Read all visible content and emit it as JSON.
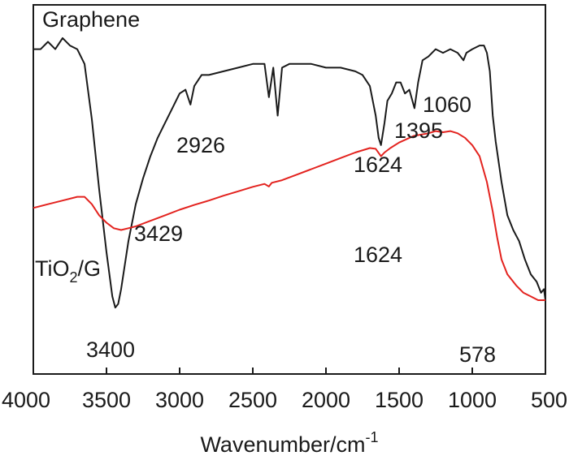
{
  "chart_data": {
    "type": "line",
    "xlabel": "Wavenumber/cm",
    "xlabel_sup": "-1",
    "xlim": [
      4000,
      500
    ],
    "x_reversed": true,
    "xticks": [
      4000,
      3500,
      3000,
      2500,
      2000,
      1500,
      1000,
      500
    ],
    "yticks_shown": false,
    "grid": false,
    "series": [
      {
        "name": "Graphene",
        "color": "#1a1a1a",
        "points": [
          [
            4000,
            0.88
          ],
          [
            3950,
            0.88
          ],
          [
            3900,
            0.9
          ],
          [
            3850,
            0.88
          ],
          [
            3800,
            0.91
          ],
          [
            3750,
            0.89
          ],
          [
            3700,
            0.88
          ],
          [
            3650,
            0.84
          ],
          [
            3600,
            0.69
          ],
          [
            3550,
            0.5
          ],
          [
            3500,
            0.33
          ],
          [
            3460,
            0.21
          ],
          [
            3440,
            0.18
          ],
          [
            3420,
            0.19
          ],
          [
            3400,
            0.23
          ],
          [
            3350,
            0.36
          ],
          [
            3300,
            0.46
          ],
          [
            3250,
            0.53
          ],
          [
            3200,
            0.59
          ],
          [
            3150,
            0.64
          ],
          [
            3100,
            0.68
          ],
          [
            3050,
            0.72
          ],
          [
            3000,
            0.76
          ],
          [
            2960,
            0.77
          ],
          [
            2926,
            0.73
          ],
          [
            2900,
            0.78
          ],
          [
            2850,
            0.81
          ],
          [
            2800,
            0.81
          ],
          [
            2700,
            0.82
          ],
          [
            2600,
            0.83
          ],
          [
            2500,
            0.84
          ],
          [
            2420,
            0.84
          ],
          [
            2390,
            0.75
          ],
          [
            2360,
            0.83
          ],
          [
            2330,
            0.7
          ],
          [
            2300,
            0.83
          ],
          [
            2250,
            0.84
          ],
          [
            2200,
            0.84
          ],
          [
            2100,
            0.84
          ],
          [
            2000,
            0.83
          ],
          [
            1900,
            0.83
          ],
          [
            1800,
            0.82
          ],
          [
            1750,
            0.81
          ],
          [
            1700,
            0.78
          ],
          [
            1660,
            0.7
          ],
          [
            1640,
            0.64
          ],
          [
            1624,
            0.62
          ],
          [
            1600,
            0.68
          ],
          [
            1580,
            0.74
          ],
          [
            1550,
            0.76
          ],
          [
            1520,
            0.79
          ],
          [
            1490,
            0.79
          ],
          [
            1460,
            0.76
          ],
          [
            1430,
            0.77
          ],
          [
            1395,
            0.72
          ],
          [
            1370,
            0.79
          ],
          [
            1340,
            0.85
          ],
          [
            1300,
            0.86
          ],
          [
            1250,
            0.88
          ],
          [
            1200,
            0.87
          ],
          [
            1150,
            0.88
          ],
          [
            1100,
            0.87
          ],
          [
            1060,
            0.85
          ],
          [
            1040,
            0.87
          ],
          [
            1000,
            0.88
          ],
          [
            950,
            0.89
          ],
          [
            920,
            0.89
          ],
          [
            900,
            0.87
          ],
          [
            880,
            0.82
          ],
          [
            860,
            0.7
          ],
          [
            840,
            0.63
          ],
          [
            800,
            0.52
          ],
          [
            760,
            0.43
          ],
          [
            720,
            0.39
          ],
          [
            680,
            0.36
          ],
          [
            640,
            0.31
          ],
          [
            600,
            0.27
          ],
          [
            560,
            0.25
          ],
          [
            530,
            0.22
          ],
          [
            510,
            0.23
          ],
          [
            500,
            0.2
          ]
        ]
      },
      {
        "name": "TiO2/G",
        "color": "#e3231f",
        "points": [
          [
            4000,
            0.45
          ],
          [
            3900,
            0.46
          ],
          [
            3800,
            0.47
          ],
          [
            3700,
            0.48
          ],
          [
            3650,
            0.48
          ],
          [
            3600,
            0.46
          ],
          [
            3550,
            0.43
          ],
          [
            3500,
            0.41
          ],
          [
            3450,
            0.395
          ],
          [
            3400,
            0.39
          ],
          [
            3350,
            0.395
          ],
          [
            3300,
            0.4
          ],
          [
            3200,
            0.415
          ],
          [
            3100,
            0.43
          ],
          [
            3000,
            0.445
          ],
          [
            2900,
            0.458
          ],
          [
            2800,
            0.47
          ],
          [
            2700,
            0.483
          ],
          [
            2600,
            0.495
          ],
          [
            2500,
            0.507
          ],
          [
            2420,
            0.515
          ],
          [
            2390,
            0.508
          ],
          [
            2370,
            0.518
          ],
          [
            2300,
            0.525
          ],
          [
            2200,
            0.54
          ],
          [
            2100,
            0.555
          ],
          [
            2000,
            0.57
          ],
          [
            1900,
            0.585
          ],
          [
            1800,
            0.6
          ],
          [
            1700,
            0.612
          ],
          [
            1660,
            0.61
          ],
          [
            1624,
            0.59
          ],
          [
            1600,
            0.6
          ],
          [
            1560,
            0.612
          ],
          [
            1500,
            0.627
          ],
          [
            1400,
            0.645
          ],
          [
            1300,
            0.652
          ],
          [
            1250,
            0.658
          ],
          [
            1200,
            0.655
          ],
          [
            1150,
            0.658
          ],
          [
            1100,
            0.652
          ],
          [
            1050,
            0.64
          ],
          [
            1000,
            0.62
          ],
          [
            950,
            0.59
          ],
          [
            900,
            0.52
          ],
          [
            860,
            0.44
          ],
          [
            830,
            0.37
          ],
          [
            800,
            0.31
          ],
          [
            760,
            0.27
          ],
          [
            700,
            0.24
          ],
          [
            650,
            0.22
          ],
          [
            600,
            0.21
          ],
          [
            550,
            0.2
          ],
          [
            500,
            0.2
          ]
        ]
      }
    ],
    "labels": {
      "graphene_title": "Graphene",
      "tio2_prefix": "TiO",
      "tio2_sub": "2",
      "tio2_suffix": "/G"
    },
    "annotations": [
      {
        "text": "3429",
        "series": "Graphene"
      },
      {
        "text": "2926",
        "series": "Graphene"
      },
      {
        "text": "1624",
        "series": "Graphene"
      },
      {
        "text": "1395",
        "series": "Graphene"
      },
      {
        "text": "1060",
        "series": "Graphene"
      },
      {
        "text": "3400",
        "series": "TiO2/G"
      },
      {
        "text": "1624",
        "series": "TiO2/G"
      },
      {
        "text": "578",
        "series": "TiO2/G"
      }
    ]
  }
}
